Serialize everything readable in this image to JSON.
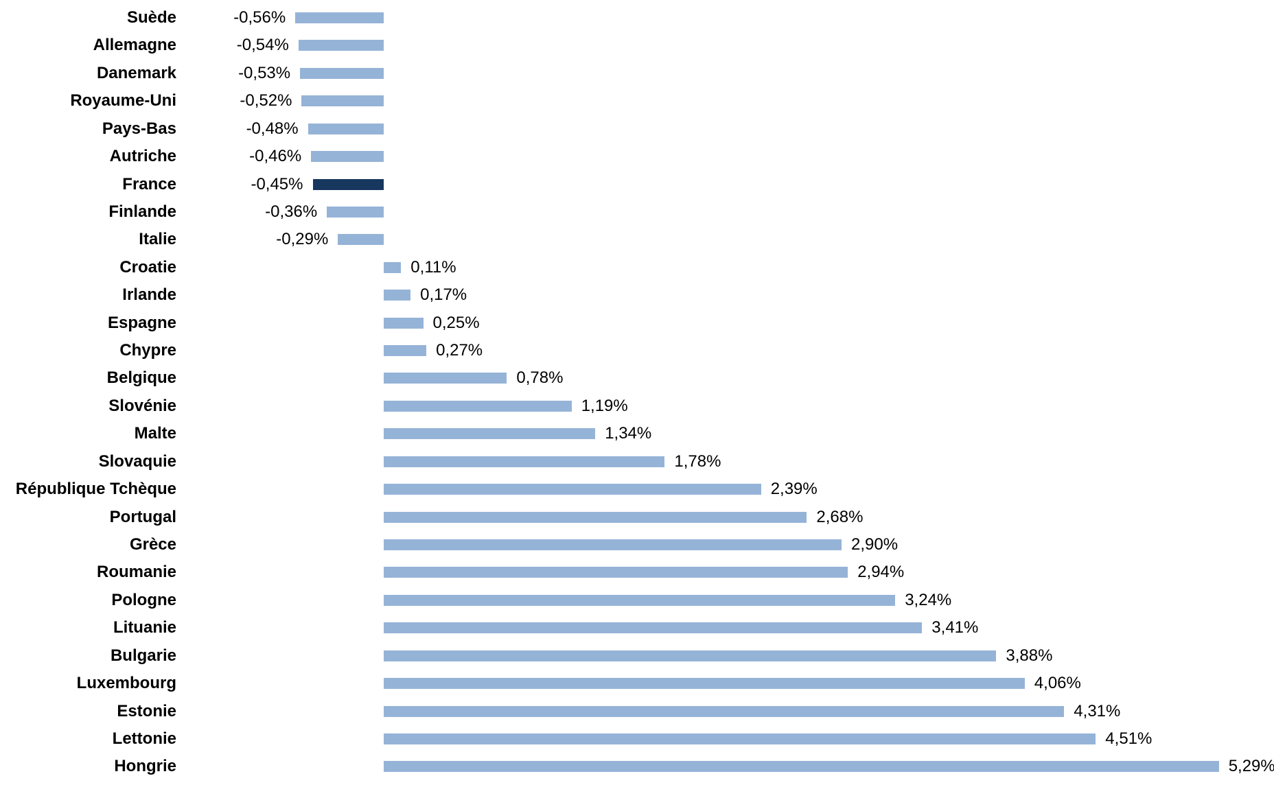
{
  "chart_data": {
    "type": "bar",
    "orientation": "horizontal",
    "title": "",
    "xlabel": "",
    "ylabel": "",
    "grid": false,
    "legend": false,
    "axes_visible": false,
    "value_format": "french-decimal-percent",
    "xlim": [
      -0.56,
      5.29
    ],
    "highlighted_category": "France",
    "colors": {
      "bar": "#95B3D7",
      "highlight_bar": "#17375E",
      "text": "#000000",
      "background": "#FFFFFF"
    },
    "categories": [
      "Suède",
      "Allemagne",
      "Danemark",
      "Royaume-Uni",
      "Pays-Bas",
      "Autriche",
      "France",
      "Finlande",
      "Italie",
      "Croatie",
      "Irlande",
      "Espagne",
      "Chypre",
      "Belgique",
      "Slovénie",
      "Malte",
      "Slovaquie",
      "République Tchèque",
      "Portugal",
      "Grèce",
      "Roumanie",
      "Pologne",
      "Lituanie",
      "Bulgarie",
      "Luxembourg",
      "Estonie",
      "Lettonie",
      "Hongrie"
    ],
    "values": [
      -0.56,
      -0.54,
      -0.53,
      -0.52,
      -0.48,
      -0.46,
      -0.45,
      -0.36,
      -0.29,
      0.11,
      0.17,
      0.25,
      0.27,
      0.78,
      1.19,
      1.34,
      1.78,
      2.39,
      2.68,
      2.9,
      2.94,
      3.24,
      3.41,
      3.88,
      4.06,
      4.31,
      4.51,
      5.29
    ],
    "value_labels": [
      "-0,56%",
      "-0,54%",
      "-0,53%",
      "-0,52%",
      "-0,48%",
      "-0,46%",
      "-0,45%",
      "-0,36%",
      "-0,29%",
      "0,11%",
      "0,17%",
      "0,25%",
      "0,27%",
      "0,78%",
      "1,19%",
      "1,34%",
      "1,78%",
      "2,39%",
      "2,68%",
      "2,90%",
      "2,94%",
      "3,24%",
      "3,41%",
      "3,88%",
      "4,06%",
      "4,31%",
      "4,51%",
      "5,29%"
    ]
  }
}
